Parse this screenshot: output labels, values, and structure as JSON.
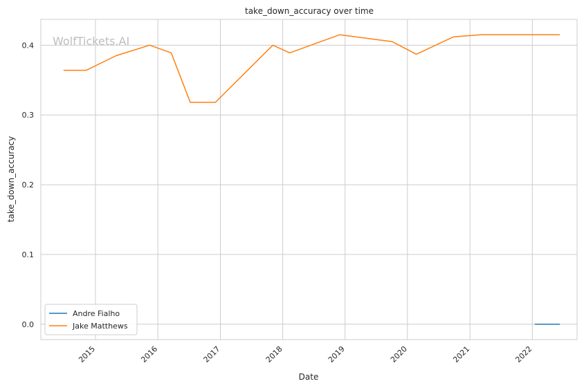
{
  "chart_data": {
    "type": "line",
    "title": "take_down_accuracy over time",
    "xlabel": "Date",
    "ylabel": "take_down_accuracy",
    "watermark": "WolfTickets.AI",
    "x_ticks": [
      "2015",
      "2016",
      "2017",
      "2018",
      "2019",
      "2020",
      "2021",
      "2022"
    ],
    "y_ticks": [
      "0.0",
      "0.1",
      "0.2",
      "0.3",
      "0.4"
    ],
    "ylim": [
      -0.022,
      0.437
    ],
    "xlim": [
      "2014-02-15",
      "2022-09-20"
    ],
    "grid": true,
    "legend_position": "lower-left",
    "series": [
      {
        "name": "Andre Fialho",
        "color": "#1f77b4",
        "x": [
          "2022-01-15",
          "2022-06-11"
        ],
        "y": [
          0.0,
          0.0
        ]
      },
      {
        "name": "Jake Matthews",
        "color": "#ff7f0e",
        "x": [
          "2014-06-28",
          "2014-11-08",
          "2015-05-02",
          "2015-11-14",
          "2016-03-19",
          "2016-07-09",
          "2016-12-03",
          "2017-11-04",
          "2018-02-11",
          "2018-12-01",
          "2019-10-05",
          "2020-02-22",
          "2020-09-27",
          "2021-03-06",
          "2022-01-15",
          "2022-06-11"
        ],
        "y": [
          0.364,
          0.364,
          0.385,
          0.4,
          0.389,
          0.318,
          0.318,
          0.4,
          0.389,
          0.415,
          0.405,
          0.387,
          0.412,
          0.415,
          0.415,
          0.415
        ]
      }
    ]
  }
}
